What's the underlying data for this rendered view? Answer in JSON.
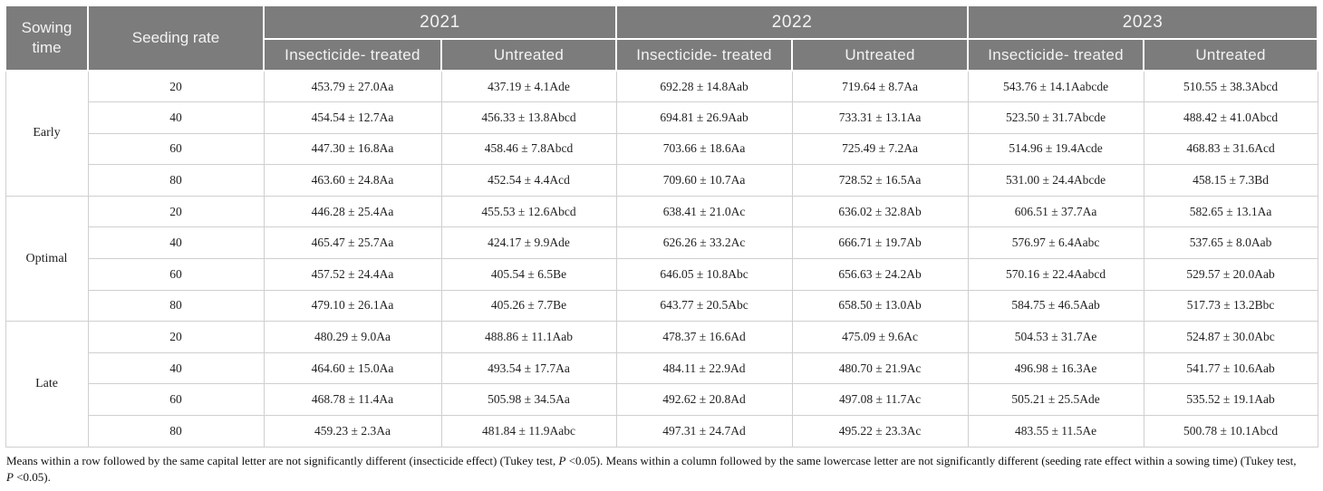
{
  "table": {
    "header": {
      "sowing_time": "Sowing time",
      "seeding_rate": "Seeding rate",
      "years": [
        "2021",
        "2022",
        "2023"
      ],
      "treated_label": "Insecticide- treated",
      "untreated_label": "Untreated"
    },
    "groups": [
      {
        "label": "Early",
        "rows": [
          [
            "20",
            "453.79 ± 27.0Aa",
            "437.19 ± 4.1Ade",
            "692.28 ± 14.8Aab",
            "719.64 ± 8.7Aa",
            "543.76 ± 14.1Aabcde",
            "510.55 ± 38.3Abcd"
          ],
          [
            "40",
            "454.54 ± 12.7Aa",
            "456.33 ± 13.8Abcd",
            "694.81 ± 26.9Aab",
            "733.31 ± 13.1Aa",
            "523.50 ± 31.7Abcde",
            "488.42 ± 41.0Abcd"
          ],
          [
            "60",
            "447.30 ± 16.8Aa",
            "458.46 ± 7.8Abcd",
            "703.66 ± 18.6Aa",
            "725.49 ± 7.2Aa",
            "514.96 ± 19.4Acde",
            "468.83 ± 31.6Acd"
          ],
          [
            "80",
            "463.60 ± 24.8Aa",
            "452.54 ± 4.4Acd",
            "709.60 ± 10.7Aa",
            "728.52 ± 16.5Aa",
            "531.00 ± 24.4Abcde",
            "458.15 ± 7.3Bd"
          ]
        ]
      },
      {
        "label": "Optimal",
        "rows": [
          [
            "20",
            "446.28 ± 25.4Aa",
            "455.53 ± 12.6Abcd",
            "638.41 ± 21.0Ac",
            "636.02 ± 32.8Ab",
            "606.51 ± 37.7Aa",
            "582.65 ± 13.1Aa"
          ],
          [
            "40",
            "465.47 ± 25.7Aa",
            "424.17 ± 9.9Ade",
            "626.26 ± 33.2Ac",
            "666.71 ± 19.7Ab",
            "576.97 ± 6.4Aabc",
            "537.65 ± 8.0Aab"
          ],
          [
            "60",
            "457.52 ± 24.4Aa",
            "405.54 ± 6.5Be",
            "646.05 ± 10.8Abc",
            "656.63 ± 24.2Ab",
            "570.16 ± 22.4Aabcd",
            "529.57 ± 20.0Aab"
          ],
          [
            "80",
            "479.10 ± 26.1Aa",
            "405.26 ± 7.7Be",
            "643.77 ± 20.5Abc",
            "658.50 ± 13.0Ab",
            "584.75 ± 46.5Aab",
            "517.73 ± 13.2Bbc"
          ]
        ]
      },
      {
        "label": "Late",
        "rows": [
          [
            "20",
            "480.29 ± 9.0Aa",
            "488.86 ± 11.1Aab",
            "478.37 ± 16.6Ad",
            "475.09 ± 9.6Ac",
            "504.53 ± 31.7Ae",
            "524.87 ± 30.0Abc"
          ],
          [
            "40",
            "464.60 ± 15.0Aa",
            "493.54 ± 17.7Aa",
            "484.11 ± 22.9Ad",
            "480.70 ± 21.9Ac",
            "496.98 ± 16.3Ae",
            "541.77 ± 10.6Aab"
          ],
          [
            "60",
            "468.78 ± 11.4Aa",
            "505.98 ± 34.5Aa",
            "492.62 ± 20.8Ad",
            "497.08 ± 11.7Ac",
            "505.21 ± 25.5Ade",
            "535.52 ± 19.1Aab"
          ],
          [
            "80",
            "459.23 ± 2.3Aa",
            "481.84 ± 11.9Aabc",
            "497.31 ± 24.7Ad",
            "495.22 ± 23.3Ac",
            "483.55 ± 11.5Ae",
            "500.78 ± 10.1Abcd"
          ]
        ]
      }
    ]
  },
  "footnote": {
    "part1": "Means within a row followed by the same capital letter are not significantly different (insecticide effect) (Tukey test, ",
    "p1": "P",
    "part2": " <0.05). Means within a column followed by the same lowercase letter are not significantly different (seeding rate effect within a sowing time) (Tukey test,",
    "p2": "P",
    "part3": " <0.05)."
  },
  "colors": {
    "header_bg": "#7c7c7c",
    "header_text": "#f3f3f3",
    "body_border": "#cfcfcf",
    "body_text": "#1f1f1f"
  }
}
